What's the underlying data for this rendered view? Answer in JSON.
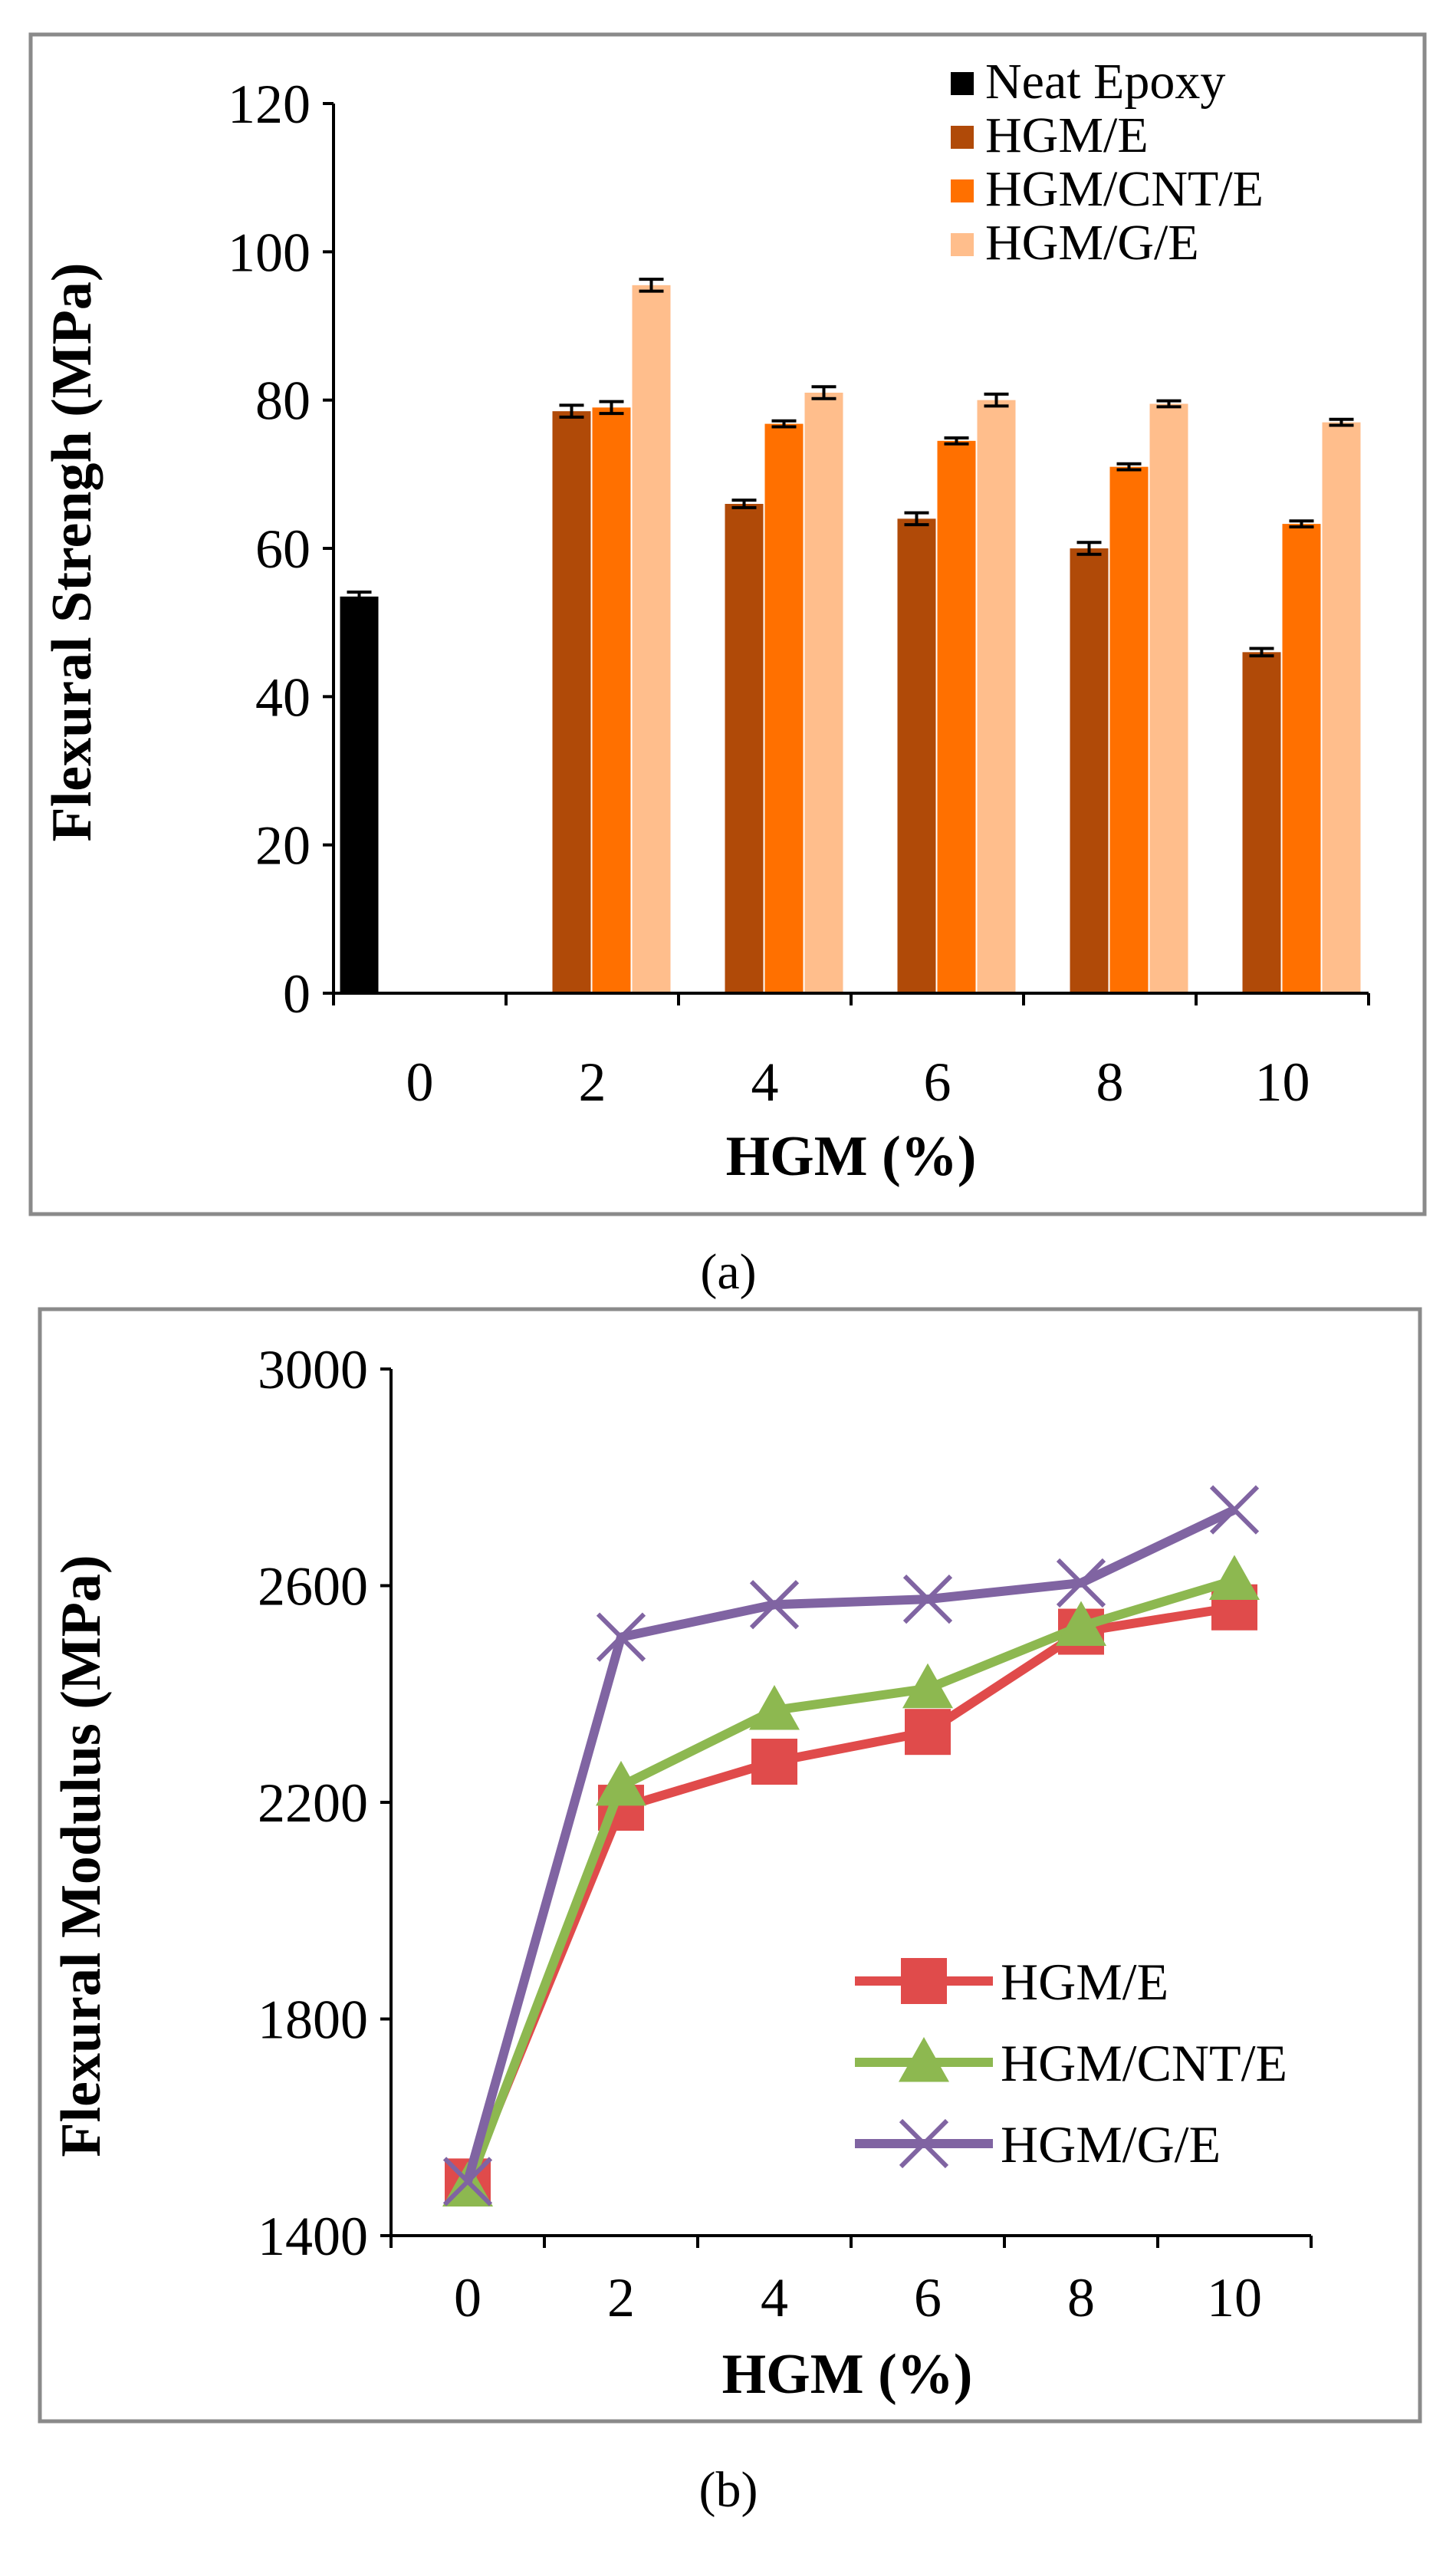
{
  "chart_data": [
    {
      "type": "bar",
      "panel_label": "(a)",
      "title": "",
      "xlabel": "HGM (%)",
      "ylabel": "Flexural  Strengh (MPa)",
      "ylim": [
        0,
        120
      ],
      "yticks": [
        "0",
        "20",
        "40",
        "60",
        "80",
        "100",
        "120"
      ],
      "categories": [
        "0",
        "2",
        "4",
        "6",
        "8",
        "10"
      ],
      "legend_position": "top-right",
      "series": [
        {
          "name": "Neat Epoxy",
          "color": "#000000",
          "values": [
            53.5,
            null,
            null,
            null,
            null,
            null
          ],
          "errors": [
            0.6,
            null,
            null,
            null,
            null,
            null
          ]
        },
        {
          "name": "HGM/E",
          "color": "#B04A08",
          "values": [
            null,
            78.5,
            66,
            64,
            60,
            46
          ],
          "errors": [
            null,
            0.8,
            0.5,
            0.8,
            0.8,
            0.5
          ]
        },
        {
          "name": "HGM/CNT/E",
          "color": "#FF7000",
          "values": [
            null,
            79,
            76.8,
            74.5,
            71,
            63.3
          ],
          "errors": [
            null,
            0.8,
            0.4,
            0.4,
            0.4,
            0.4
          ]
        },
        {
          "name": "HGM/G/E",
          "color": "#FFBE8C",
          "values": [
            null,
            95.5,
            81,
            80,
            79.5,
            77
          ],
          "errors": [
            null,
            0.8,
            0.8,
            0.8,
            0.4,
            0.4
          ]
        }
      ]
    },
    {
      "type": "line",
      "panel_label": "(b)",
      "title": "",
      "xlabel": "HGM (%)",
      "ylabel": "Flexural Modulus (MPa)",
      "ylim": [
        1400,
        3000
      ],
      "yticks": [
        "1400",
        "1800",
        "2200",
        "2600",
        "3000"
      ],
      "categories": [
        "0",
        "2",
        "4",
        "6",
        "8",
        "10"
      ],
      "legend_position": "bottom-right",
      "series": [
        {
          "name": "HGM/E",
          "color": "#E04B4B",
          "marker": "square",
          "values": [
            1500,
            2190,
            2275,
            2330,
            2515,
            2560
          ]
        },
        {
          "name": "HGM/CNT/E",
          "color": "#8DB850",
          "marker": "triangle",
          "values": [
            1490,
            2230,
            2370,
            2410,
            2525,
            2610
          ]
        },
        {
          "name": "HGM/G/E",
          "color": "#8064A2",
          "marker": "x",
          "values": [
            1500,
            2505,
            2565,
            2575,
            2605,
            2740
          ]
        }
      ]
    }
  ]
}
